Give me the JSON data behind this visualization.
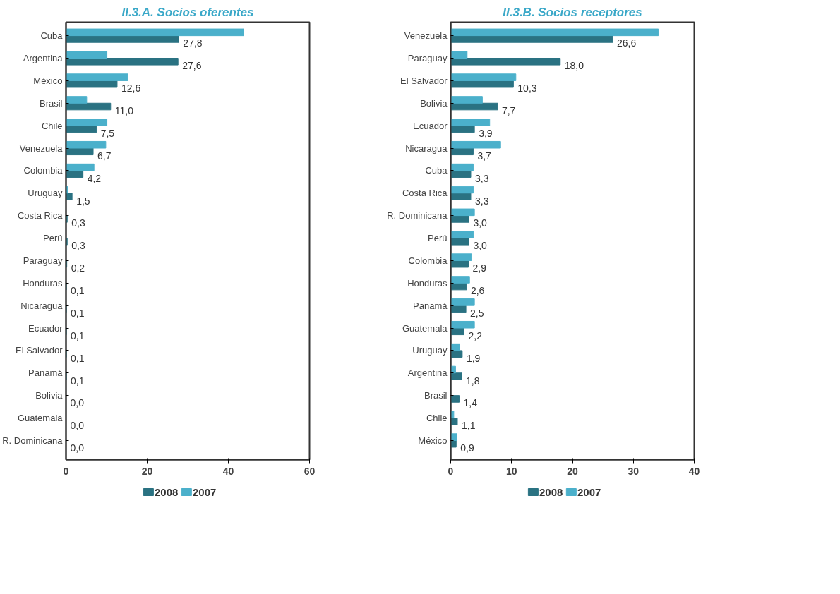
{
  "chart_data": [
    {
      "type": "bar",
      "orientation": "horizontal",
      "title": "II.3.A. Socios oferentes",
      "categories": [
        "Cuba",
        "Argentina",
        "México",
        "Brasil",
        "Chile",
        "Venezuela",
        "Colombia",
        "Uruguay",
        "Costa Rica",
        "Perú",
        "Paraguay",
        "Honduras",
        "Nicaragua",
        "Ecuador",
        "El Salvador",
        "Panamá",
        "Bolivia",
        "Guatemala",
        "R. Dominicana"
      ],
      "series": [
        {
          "name": "2008",
          "color": "#2a7282",
          "values": [
            27.8,
            27.6,
            12.6,
            11.0,
            7.5,
            6.7,
            4.2,
            1.5,
            0.3,
            0.3,
            0.2,
            0.1,
            0.1,
            0.1,
            0.1,
            0.1,
            0.0,
            0.0,
            0.0
          ],
          "value_labels": [
            "27,8",
            "27,6",
            "12,6",
            "11,0",
            "7,5",
            "6,7",
            "4,2",
            "1,5",
            "0,3",
            "0,3",
            "0,2",
            "0,1",
            "0,1",
            "0,1",
            "0,1",
            "0,1",
            "0,0",
            "0,0",
            "0,0"
          ]
        },
        {
          "name": "2007",
          "color": "#4bb0cb",
          "values": [
            43.8,
            10.1,
            15.2,
            5.1,
            10.1,
            9.8,
            6.9,
            0.5,
            null,
            null,
            0,
            0,
            0,
            0,
            0,
            0,
            0,
            0,
            0
          ]
        }
      ],
      "xlim": [
        0,
        60
      ],
      "xticks": [
        0,
        20,
        40,
        60
      ],
      "grid": false,
      "legend": "bottom"
    },
    {
      "type": "bar",
      "orientation": "horizontal",
      "title": "II.3.B. Socios receptores",
      "categories": [
        "Venezuela",
        "Paraguay",
        "El Salvador",
        "Bolivia",
        "Ecuador",
        "Nicaragua",
        "Cuba",
        "Costa Rica",
        "R. Dominicana",
        "Perú",
        "Colombia",
        "Honduras",
        "Panamá",
        "Guatemala",
        "Uruguay",
        "Argentina",
        "Brasil",
        "Chile",
        "México"
      ],
      "series": [
        {
          "name": "2008",
          "color": "#2a7282",
          "values": [
            26.6,
            18.0,
            10.3,
            7.7,
            3.9,
            3.7,
            3.3,
            3.3,
            3.0,
            3.0,
            2.9,
            2.6,
            2.5,
            2.2,
            1.9,
            1.8,
            1.4,
            1.1,
            0.9
          ],
          "value_labels": [
            "26,6",
            "18,0",
            "10,3",
            "7,7",
            "3,9",
            "3,7",
            "3,3",
            "3,3",
            "3,0",
            "3,0",
            "2,9",
            "2,6",
            "2,5",
            "2,2",
            "1,9",
            "1,8",
            "1,4",
            "1,1",
            "0,9"
          ]
        },
        {
          "name": "2007",
          "color": "#4bb0cb",
          "values": [
            34.1,
            2.7,
            10.7,
            5.2,
            6.4,
            8.2,
            3.7,
            3.7,
            3.9,
            3.7,
            3.4,
            3.1,
            3.9,
            3.9,
            1.5,
            0.8,
            null,
            0.5,
            1.0
          ]
        }
      ],
      "xlim": [
        0,
        40
      ],
      "xticks": [
        0,
        10,
        20,
        30,
        40
      ],
      "grid": false,
      "legend": "bottom"
    }
  ]
}
